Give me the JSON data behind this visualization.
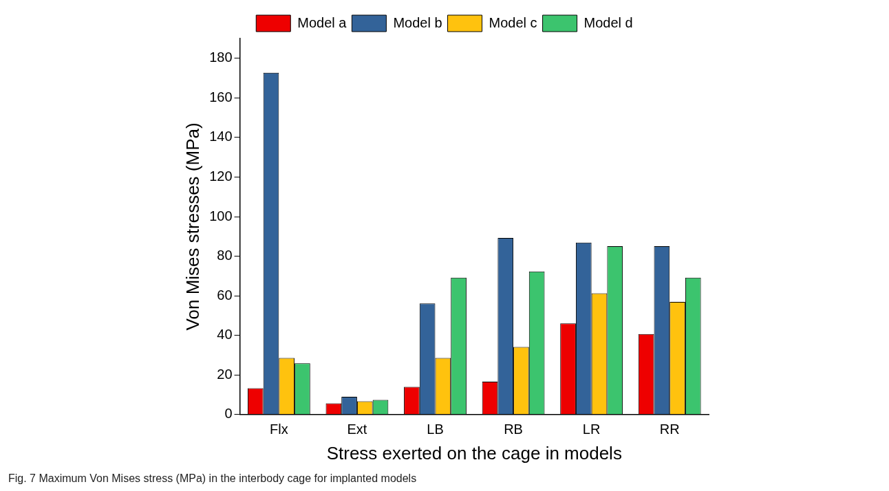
{
  "chart_data": {
    "type": "bar",
    "xlabel": "Stress exerted on the cage in models",
    "ylabel": "Von Mises stresses (MPa)",
    "categories": [
      "Flx",
      "Ext",
      "LB",
      "RB",
      "LR",
      "RR"
    ],
    "series": [
      {
        "name": "Model a",
        "color": "#ee0000",
        "values": [
          13.3,
          5.7,
          14,
          16.6,
          46.1,
          40.7
        ]
      },
      {
        "name": "Model b",
        "color": "#336399",
        "values": [
          172.7,
          9,
          56.1,
          89.2,
          86.9,
          85.1
        ]
      },
      {
        "name": "Model c",
        "color": "#ffc20e",
        "values": [
          28.6,
          6.7,
          28.6,
          34.2,
          61.3,
          56.9
        ]
      },
      {
        "name": "Model d",
        "color": "#3cc46e",
        "values": [
          25.9,
          7.4,
          69.2,
          72.3,
          85.1,
          69.2
        ]
      }
    ],
    "ylim": [
      0,
      190
    ],
    "yticks": [
      0,
      20,
      40,
      60,
      80,
      100,
      120,
      140,
      160,
      180
    ],
    "grid": false,
    "legend": "top",
    "annotations": [
      "Fig. 7 Maximum Von Mises stress (MPa) in the interbody cage for implanted models"
    ]
  }
}
